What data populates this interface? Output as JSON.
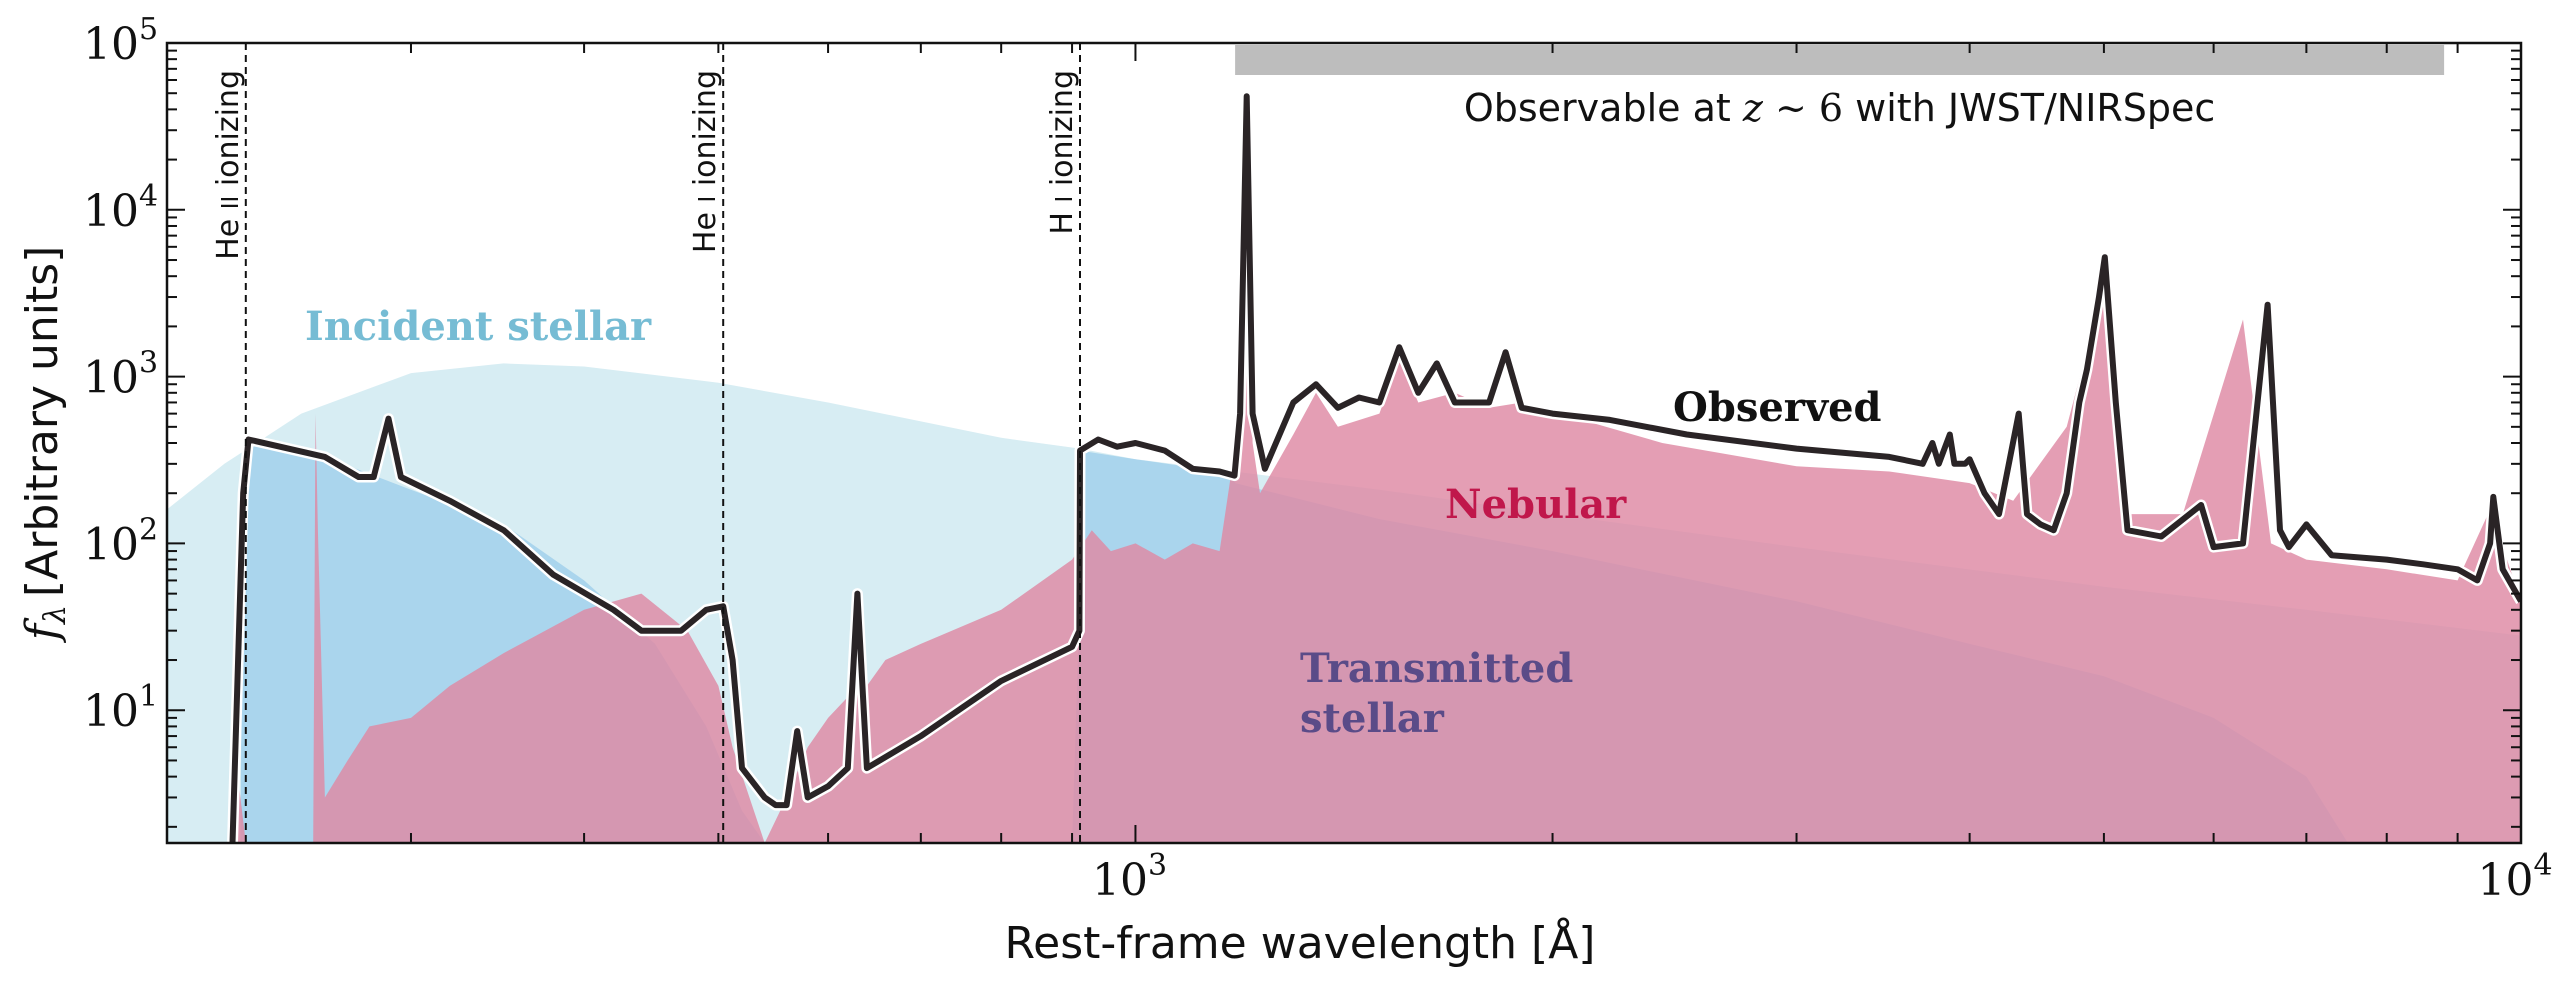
{
  "chart_data": {
    "type": "line",
    "title": "",
    "xlabel": "Rest-frame wavelength [Å]",
    "ylabel_symbol": "f",
    "ylabel_sub": "λ",
    "ylabel_rest": "[Arbitrary units]",
    "xscale": "log",
    "yscale": "log",
    "xlim": [
      200,
      10000
    ],
    "ylim": [
      1.6,
      100000
    ],
    "x_major_ticks": [
      {
        "value": 1000,
        "base": "10",
        "exp": "3"
      },
      {
        "value": 10000,
        "base": "10",
        "exp": "4"
      }
    ],
    "x_minor_ticks": [
      200,
      300,
      400,
      500,
      600,
      700,
      800,
      900,
      2000,
      3000,
      4000,
      5000,
      6000,
      7000,
      8000,
      9000
    ],
    "y_major_ticks": [
      {
        "value": 10,
        "base": "10",
        "exp": "1"
      },
      {
        "value": 100,
        "base": "10",
        "exp": "2"
      },
      {
        "value": 1000,
        "base": "10",
        "exp": "3"
      },
      {
        "value": 10000,
        "base": "10",
        "exp": "4"
      },
      {
        "value": 100000,
        "base": "10",
        "exp": "5"
      }
    ],
    "ionizing_edges": [
      {
        "value": 228,
        "label": "He II ionizing",
        "label_main": "He ",
        "label_roman": "II",
        "label_suffix": " ionizing"
      },
      {
        "value": 504,
        "label": "He I ionizing",
        "label_main": "He ",
        "label_roman": "I",
        "label_suffix": " ionizing"
      },
      {
        "value": 912,
        "label": "H I ionizing",
        "label_main": "H ",
        "label_roman": "I",
        "label_suffix": " ionizing"
      }
    ],
    "observable_band": {
      "x_range": [
        1180,
        8800
      ],
      "label_prefix": "Observable at ",
      "label_z": "z",
      "label_sim": " ∼ ",
      "label_num": "6",
      "label_suffix": " with JWST/NIRSpec",
      "color": "#bdbdbd"
    },
    "series": [
      {
        "name": "Incident stellar",
        "kind": "area",
        "color": "#d7edf3",
        "label_color": "#76bcd4",
        "points": [
          [
            200,
            160
          ],
          [
            220,
            300
          ],
          [
            250,
            600
          ],
          [
            300,
            1050
          ],
          [
            350,
            1200
          ],
          [
            400,
            1150
          ],
          [
            500,
            920
          ],
          [
            600,
            700
          ],
          [
            800,
            430
          ],
          [
            912,
            370
          ],
          [
            1000,
            320
          ],
          [
            1500,
            210
          ],
          [
            2000,
            150
          ],
          [
            3000,
            95
          ],
          [
            5000,
            55
          ],
          [
            7000,
            40
          ],
          [
            10000,
            28
          ]
        ]
      },
      {
        "name": "Transmitted stellar",
        "kind": "area",
        "color": "#a2d0eb",
        "label_color": "#5a4b88",
        "label_line1": "Transmitted",
        "label_line2": "stellar",
        "points": [
          [
            226,
            1.6
          ],
          [
            227,
            300
          ],
          [
            229,
            430
          ],
          [
            260,
            330
          ],
          [
            300,
            210
          ],
          [
            350,
            130
          ],
          [
            400,
            60
          ],
          [
            450,
            25
          ],
          [
            490,
            8
          ],
          [
            520,
            2.5
          ],
          [
            540,
            1.6
          ],
          [
            900,
            1.6
          ],
          [
            911,
            40
          ],
          [
            912,
            360
          ],
          [
            1000,
            320
          ],
          [
            1150,
            270
          ],
          [
            1179,
            255
          ],
          [
            1180,
            230
          ],
          [
            1500,
            140
          ],
          [
            2000,
            90
          ],
          [
            3000,
            45
          ],
          [
            4000,
            25
          ],
          [
            5000,
            16
          ],
          [
            6000,
            9
          ],
          [
            7000,
            4
          ],
          [
            7500,
            1.6
          ]
        ]
      },
      {
        "name": "Nebular",
        "kind": "area",
        "color": "#de89a4",
        "label_color": "#c0174b",
        "points": [
          [
            223,
            1.6
          ],
          [
            224,
            5.5
          ],
          [
            228,
            1.6
          ],
          [
            255,
            1.6
          ],
          [
            256,
            600
          ],
          [
            257,
            120
          ],
          [
            260,
            3
          ],
          [
            270,
            5
          ],
          [
            280,
            8
          ],
          [
            300,
            9
          ],
          [
            320,
            14
          ],
          [
            350,
            22
          ],
          [
            400,
            40
          ],
          [
            440,
            50
          ],
          [
            475,
            30
          ],
          [
            500,
            14
          ],
          [
            512,
            6
          ],
          [
            540,
            1.6
          ],
          [
            560,
            3
          ],
          [
            580,
            6
          ],
          [
            600,
            9
          ],
          [
            620,
            12
          ],
          [
            640,
            14
          ],
          [
            660,
            20
          ],
          [
            700,
            25
          ],
          [
            800,
            40
          ],
          [
            900,
            80
          ],
          [
            930,
            120
          ],
          [
            960,
            90
          ],
          [
            1000,
            100
          ],
          [
            1050,
            80
          ],
          [
            1100,
            100
          ],
          [
            1150,
            90
          ],
          [
            1190,
            600
          ],
          [
            1200,
            44000
          ],
          [
            1215,
            400
          ],
          [
            1230,
            200
          ],
          [
            1300,
            450
          ],
          [
            1350,
            800
          ],
          [
            1400,
            500
          ],
          [
            1500,
            600
          ],
          [
            1550,
            1300
          ],
          [
            1600,
            700
          ],
          [
            1700,
            800
          ],
          [
            1800,
            650
          ],
          [
            1900,
            700
          ],
          [
            2000,
            600
          ],
          [
            2100,
            550
          ],
          [
            2400,
            400
          ],
          [
            3000,
            290
          ],
          [
            3500,
            270
          ],
          [
            4000,
            230
          ],
          [
            4300,
            180
          ],
          [
            4700,
            500
          ],
          [
            5000,
            3500
          ],
          [
            5200,
            150
          ],
          [
            5700,
            150
          ],
          [
            6300,
            2200
          ],
          [
            6600,
            100
          ],
          [
            7000,
            80
          ],
          [
            8000,
            70
          ],
          [
            9000,
            60
          ],
          [
            9500,
            160
          ],
          [
            10000,
            45
          ]
        ]
      },
      {
        "name": "Observed",
        "kind": "line",
        "color": "#2a2426",
        "label_color": "#111111",
        "points": [
          [
            223,
            1.6
          ],
          [
            227,
            200
          ],
          [
            229,
            420
          ],
          [
            260,
            330
          ],
          [
            275,
            250
          ],
          [
            282,
            250
          ],
          [
            289,
            560
          ],
          [
            295,
            250
          ],
          [
            320,
            180
          ],
          [
            350,
            120
          ],
          [
            380,
            65
          ],
          [
            420,
            40
          ],
          [
            440,
            30
          ],
          [
            470,
            30
          ],
          [
            490,
            40
          ],
          [
            504,
            42
          ],
          [
            512,
            20
          ],
          [
            520,
            4.5
          ],
          [
            540,
            3
          ],
          [
            550,
            2.7
          ],
          [
            560,
            2.7
          ],
          [
            570,
            7.5
          ],
          [
            580,
            3
          ],
          [
            600,
            3.5
          ],
          [
            620,
            4.5
          ],
          [
            630,
            50
          ],
          [
            640,
            4.5
          ],
          [
            700,
            7
          ],
          [
            800,
            15
          ],
          [
            900,
            24
          ],
          [
            911,
            30
          ],
          [
            912,
            360
          ],
          [
            940,
            420
          ],
          [
            970,
            380
          ],
          [
            1000,
            400
          ],
          [
            1050,
            360
          ],
          [
            1100,
            280
          ],
          [
            1150,
            270
          ],
          [
            1179,
            255
          ],
          [
            1190,
            600
          ],
          [
            1203,
            48000
          ],
          [
            1215,
            600
          ],
          [
            1240,
            280
          ],
          [
            1300,
            700
          ],
          [
            1350,
            900
          ],
          [
            1400,
            650
          ],
          [
            1450,
            750
          ],
          [
            1500,
            700
          ],
          [
            1550,
            1500
          ],
          [
            1600,
            800
          ],
          [
            1650,
            1200
          ],
          [
            1700,
            700
          ],
          [
            1800,
            700
          ],
          [
            1850,
            1400
          ],
          [
            1900,
            650
          ],
          [
            2000,
            600
          ],
          [
            2200,
            550
          ],
          [
            2500,
            450
          ],
          [
            3000,
            370
          ],
          [
            3500,
            330
          ],
          [
            3700,
            300
          ],
          [
            3760,
            400
          ],
          [
            3800,
            300
          ],
          [
            3870,
            450
          ],
          [
            3900,
            300
          ],
          [
            3970,
            300
          ],
          [
            4000,
            320
          ],
          [
            4100,
            200
          ],
          [
            4200,
            150
          ],
          [
            4340,
            600
          ],
          [
            4400,
            150
          ],
          [
            4500,
            130
          ],
          [
            4600,
            120
          ],
          [
            4700,
            200
          ],
          [
            4800,
            700
          ],
          [
            4861,
            1100
          ],
          [
            4959,
            3000
          ],
          [
            5007,
            5200
          ],
          [
            5100,
            700
          ],
          [
            5200,
            120
          ],
          [
            5500,
            110
          ],
          [
            5876,
            170
          ],
          [
            6000,
            95
          ],
          [
            6300,
            100
          ],
          [
            6563,
            2700
          ],
          [
            6700,
            120
          ],
          [
            6800,
            95
          ],
          [
            7000,
            130
          ],
          [
            7300,
            85
          ],
          [
            8000,
            80
          ],
          [
            8500,
            75
          ],
          [
            9000,
            70
          ],
          [
            9300,
            60
          ],
          [
            9500,
            100
          ],
          [
            9550,
            190
          ],
          [
            9700,
            70
          ],
          [
            10000,
            45
          ]
        ]
      }
    ]
  }
}
